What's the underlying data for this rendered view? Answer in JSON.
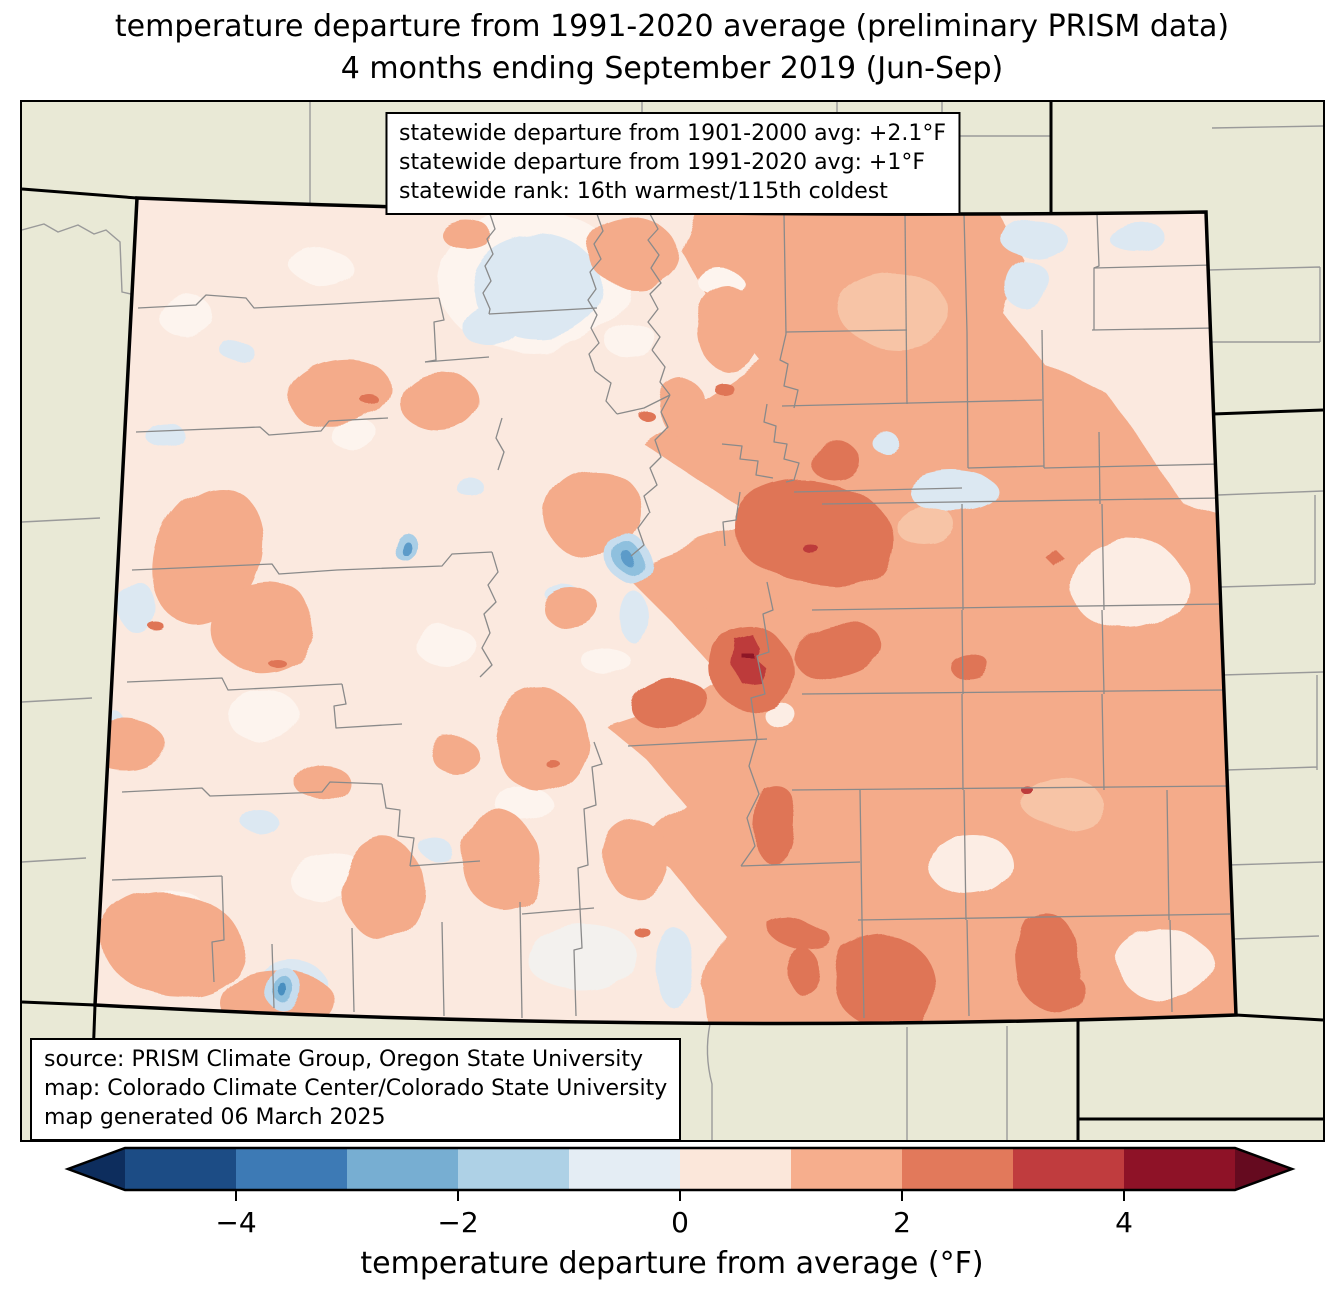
{
  "title": {
    "line1": "temperature departure from 1991-2020 average (preliminary PRISM data)",
    "line2": "4 months ending September 2019 (Jun-Sep)"
  },
  "stats_box": {
    "line1": "statewide departure from 1901-2000 avg: +2.1°F",
    "line2": "statewide departure from 1991-2020 avg: +1°F",
    "line3": "statewide rank: 16th warmest/115th coldest"
  },
  "source_box": {
    "line1": "source: PRISM Climate Group, Oregon State University",
    "line2": "map: Colorado Climate Center/Colorado State University",
    "line3": "map generated 06 March 2025"
  },
  "colorbar": {
    "label": "temperature departure from average (°F)",
    "tick_labels": [
      "−4",
      "−2",
      "0",
      "2",
      "4"
    ],
    "tick_values": [
      -4,
      -2,
      0,
      2,
      4
    ],
    "value_range": [
      -5,
      5
    ],
    "segment_colors": [
      "#1c4c85",
      "#3d7ab5",
      "#77aed2",
      "#aed1e6",
      "#e4edf4",
      "#fbe7da",
      "#f6ae8d",
      "#e2795b",
      "#c03c3e",
      "#8e1227"
    ],
    "under_arrow_color": "#0d2d5d",
    "over_arrow_color": "#650a1f"
  },
  "map": {
    "state": "Colorado",
    "outside_fill": "#e9e9d6",
    "state_base_fill": "#fbe9df",
    "county_line_color": "#8a8a8a",
    "state_border_color": "#000000",
    "anomaly_palette": {
      "minus2_to_minus1": "#a9cee6",
      "minus1_to_0": "#dce8f2",
      "0_to_1": "#fbe9df",
      "1_to_2": "#f4ab8a",
      "2_to_3": "#df7456",
      "3_to_4": "#bd3b3b",
      "4_to_5": "#8e1426"
    }
  }
}
